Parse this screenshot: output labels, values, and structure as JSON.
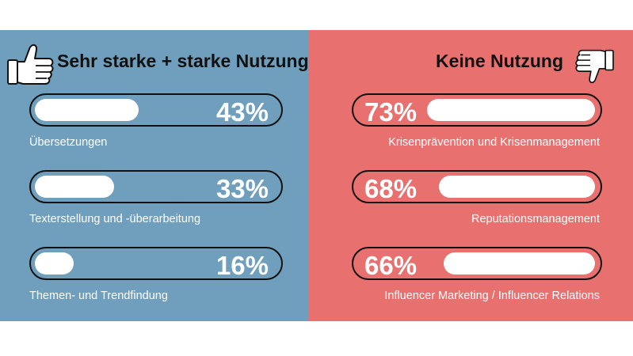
{
  "left": {
    "heading": "Sehr starke + starke Nutzung",
    "icon": "thumbs-up-icon",
    "color": "#6f9fbc",
    "items": [
      {
        "label": "Übersetzungen",
        "value": 43,
        "value_label": "43%"
      },
      {
        "label": "Texterstellung und -überarbeitung",
        "value": 33,
        "value_label": "33%"
      },
      {
        "label": "Themen- und Trendfindung",
        "value": 16,
        "value_label": "16%"
      }
    ]
  },
  "right": {
    "heading": "Keine Nutzung",
    "icon": "thumbs-down-icon",
    "color": "#e8706f",
    "items": [
      {
        "label": "Krisenprävention und Krisenmanagement",
        "value": 73,
        "value_label": "73%"
      },
      {
        "label": "Reputationsmanagement",
        "value": 68,
        "value_label": "68%"
      },
      {
        "label": "Influencer Marketing / Influencer Relations",
        "value": 66,
        "value_label": "66%"
      }
    ]
  },
  "chart_data": {
    "type": "bar",
    "series": [
      {
        "name": "Sehr starke + starke Nutzung",
        "categories": [
          "Übersetzungen",
          "Texterstellung und -überarbeitung",
          "Themen- und Trendfindung"
        ],
        "values": [
          43,
          33,
          16
        ]
      },
      {
        "name": "Keine Nutzung",
        "categories": [
          "Krisenprävention und Krisenmanagement",
          "Reputationsmanagement",
          "Influencer Marketing / Influencer Relations"
        ],
        "values": [
          73,
          68,
          66
        ]
      }
    ],
    "ylim": [
      0,
      100
    ]
  }
}
